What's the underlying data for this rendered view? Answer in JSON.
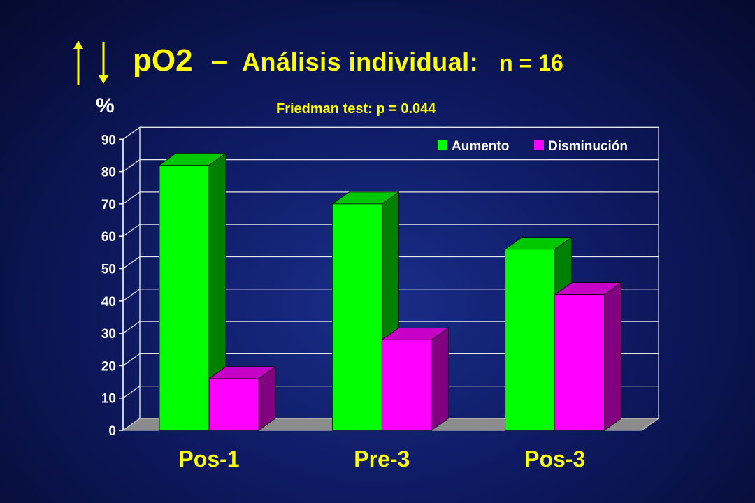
{
  "header": {
    "title_main": "pO2",
    "title_dash": "–",
    "title_sub": "Análisis individual:",
    "title_n": "n = 16",
    "arrow_up_color": "#ffff00",
    "arrow_down_color": "#ffff00"
  },
  "chart_data": {
    "type": "bar",
    "subtitle": "Friedman test: p = 0.044",
    "ylabel": "%",
    "ylim": [
      0,
      90
    ],
    "yticks": [
      0,
      10,
      20,
      30,
      40,
      50,
      60,
      70,
      80,
      90
    ],
    "categories": [
      "Pos-1",
      "Pre-3",
      "Pos-3"
    ],
    "series": [
      {
        "name": "Aumento",
        "values": [
          82,
          70,
          56
        ],
        "color": "#00ff00"
      },
      {
        "name": "Disminución",
        "values": [
          16,
          28,
          42
        ],
        "color": "#ff00ff"
      }
    ],
    "grid": true,
    "legend": "top-right",
    "style": "3d"
  }
}
